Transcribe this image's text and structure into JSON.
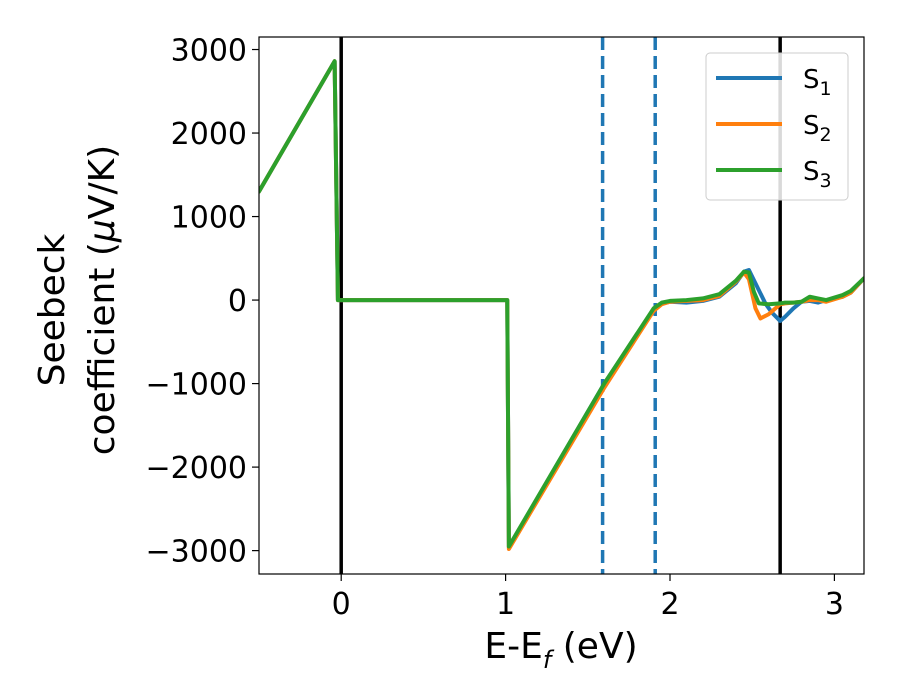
{
  "chart_data": {
    "type": "line",
    "xlabel": {
      "main": "E-E",
      "sub": "f",
      "tail": " (eV)"
    },
    "ylabel": {
      "line1": "Seebeck",
      "line2_pre": "coefficient  (",
      "mu": "μ",
      "line2_post": "V/K)"
    },
    "xlim": [
      -0.5,
      3.18
    ],
    "ylim": [
      -3280,
      3150
    ],
    "xticks": [
      0,
      1,
      2,
      3
    ],
    "yticks": [
      -3000,
      -2000,
      -1000,
      0,
      1000,
      2000,
      3000
    ],
    "ytick_labels": [
      "−3000",
      "−2000",
      "−1000",
      "0",
      "1000",
      "2000",
      "3000"
    ],
    "xtick_labels": [
      "0",
      "1",
      "2",
      "3"
    ],
    "vlines": [
      {
        "x": 0.0,
        "style": "solid",
        "color": "#000000"
      },
      {
        "x": 2.67,
        "style": "solid",
        "color": "#000000"
      },
      {
        "x": 1.59,
        "style": "dashed",
        "color": "#1f77b4"
      },
      {
        "x": 1.91,
        "style": "dashed",
        "color": "#1f77b4"
      }
    ],
    "legend_position": "top-right",
    "series": [
      {
        "name": {
          "base": "S",
          "sub": "1"
        },
        "color": "#1f77b4",
        "x": [
          -0.5,
          -0.04,
          -0.02,
          1.01,
          1.02,
          1.6,
          1.9,
          1.95,
          2.0,
          2.1,
          2.2,
          2.3,
          2.4,
          2.45,
          2.48,
          2.52,
          2.58,
          2.62,
          2.67,
          2.7,
          2.75,
          2.8,
          2.85,
          2.9,
          2.95,
          3.0,
          3.05,
          3.1,
          3.18
        ],
        "y": [
          1300,
          2860,
          0,
          0,
          -2960,
          -1000,
          -120,
          -40,
          -20,
          -30,
          -10,
          40,
          200,
          340,
          360,
          200,
          -40,
          -150,
          -250,
          -200,
          -100,
          -20,
          -10,
          -30,
          0,
          20,
          40,
          90,
          260
        ]
      },
      {
        "name": {
          "base": "S",
          "sub": "2"
        },
        "color": "#ff7f0e",
        "x": [
          -0.5,
          -0.04,
          -0.02,
          1.01,
          1.02,
          1.6,
          1.9,
          1.95,
          2.0,
          2.1,
          2.2,
          2.3,
          2.4,
          2.45,
          2.48,
          2.52,
          2.55,
          2.6,
          2.67,
          2.7,
          2.75,
          2.8,
          2.85,
          2.9,
          2.95,
          3.0,
          3.05,
          3.1,
          3.18
        ],
        "y": [
          1300,
          2860,
          0,
          0,
          -2980,
          -1050,
          -130,
          -50,
          -20,
          -10,
          0,
          50,
          220,
          330,
          250,
          -100,
          -220,
          -170,
          -50,
          -40,
          -30,
          -20,
          0,
          0,
          -20,
          10,
          40,
          90,
          260
        ]
      },
      {
        "name": {
          "base": "S",
          "sub": "3"
        },
        "color": "#2ca02c",
        "x": [
          -0.5,
          -0.04,
          -0.02,
          1.01,
          1.02,
          1.6,
          1.9,
          1.95,
          2.0,
          2.1,
          2.2,
          2.3,
          2.4,
          2.45,
          2.48,
          2.51,
          2.54,
          2.6,
          2.67,
          2.7,
          2.75,
          2.8,
          2.85,
          2.9,
          2.95,
          3.0,
          3.05,
          3.1,
          3.18
        ],
        "y": [
          1300,
          2860,
          0,
          0,
          -2950,
          -1000,
          -100,
          -30,
          -10,
          0,
          20,
          70,
          230,
          340,
          330,
          100,
          -40,
          -50,
          -40,
          -30,
          -30,
          -20,
          40,
          20,
          0,
          30,
          60,
          110,
          260
        ]
      }
    ]
  }
}
